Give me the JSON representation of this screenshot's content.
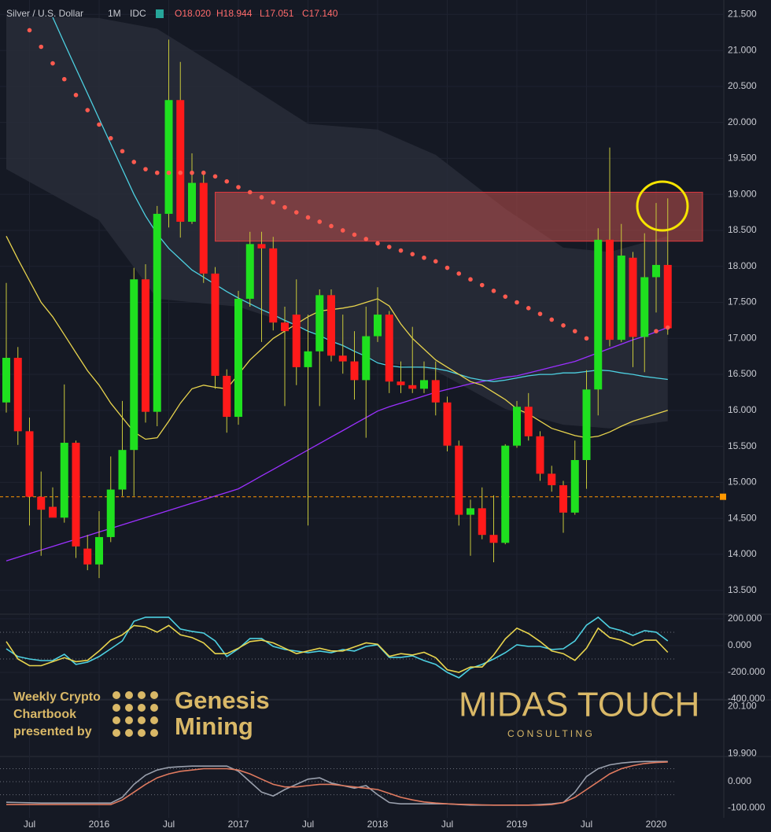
{
  "chart_data": [
    {
      "type": "candlestick",
      "title": "Silver / U.S. Dollar",
      "interval": "1M",
      "source": "IDC",
      "ohlc_labels": [
        "O18.020",
        "H18.944",
        "L17.051",
        "C17.140"
      ],
      "up_color": "#1fe01f",
      "down_color": "#ff1a1a",
      "grid": true,
      "ylim": [
        13.18,
        21.7
      ],
      "yticks": [
        {
          "value": 21.5,
          "label": "21.500"
        },
        {
          "value": 21,
          "label": "21.000"
        },
        {
          "value": 20.5,
          "label": "20.500"
        },
        {
          "value": 20,
          "label": "20.000"
        },
        {
          "value": 19.5,
          "label": "19.500"
        },
        {
          "value": 19,
          "label": "19.000"
        },
        {
          "value": 18.5,
          "label": "18.500"
        },
        {
          "value": 18,
          "label": "18.000"
        },
        {
          "value": 17.5,
          "label": "17.500"
        },
        {
          "value": 17,
          "label": "17.000"
        },
        {
          "value": 16.5,
          "label": "16.500"
        },
        {
          "value": 16,
          "label": "16.000"
        },
        {
          "value": 15.5,
          "label": "15.500"
        },
        {
          "value": 15,
          "label": "15.000"
        },
        {
          "value": 14.5,
          "label": "14.500"
        },
        {
          "value": 14,
          "label": "14.000"
        },
        {
          "value": 13.5,
          "label": "13.500"
        }
      ],
      "xticks": [
        {
          "value": 2,
          "label": "Jul"
        },
        {
          "value": 8,
          "label": "2016"
        },
        {
          "value": 14,
          "label": "Jul"
        },
        {
          "value": 20,
          "label": "2017"
        },
        {
          "value": 26,
          "label": "Jul"
        },
        {
          "value": 32,
          "label": "2018"
        },
        {
          "value": 38,
          "label": "Jul"
        },
        {
          "value": 44,
          "label": "2019"
        },
        {
          "value": 50,
          "label": "Jul"
        },
        {
          "value": 56,
          "label": "2020"
        }
      ],
      "open": [
        16.11,
        16.73,
        15.71,
        14.8,
        14.66,
        14.51,
        15.55,
        14.08,
        13.86,
        14.24,
        14.9,
        15.45,
        17.82,
        15.98,
        18.73,
        20.31,
        18.62,
        19.16,
        17.9,
        16.48,
        15.91,
        17.55,
        18.31,
        18.25,
        17.22,
        17.33,
        16.6,
        16.82,
        17.6,
        16.76,
        16.68,
        16.42,
        17.03,
        17.33,
        16.4,
        16.35,
        16.3,
        16.42,
        16.11,
        15.51,
        14.55,
        14.64,
        14.27,
        14.16,
        15.51,
        16.05,
        15.64,
        15.12,
        14.96,
        14.58,
        15.31,
        16.29,
        18.37,
        16.98,
        18.12,
        17.02,
        17.85,
        18.02
      ],
      "high": [
        17.77,
        16.88,
        15.9,
        15.15,
        14.93,
        16.36,
        15.58,
        14.27,
        14.6,
        15.36,
        16.13,
        17.98,
        18.03,
        18.84,
        21.15,
        20.84,
        19.57,
        19.29,
        17.99,
        16.57,
        17.66,
        18.48,
        18.48,
        18.41,
        17.44,
        17.82,
        17.33,
        17.68,
        17.68,
        17.33,
        17.1,
        17.44,
        17.71,
        17.38,
        16.68,
        17.16,
        16.68,
        16.68,
        16.19,
        15.58,
        14.76,
        14.93,
        14.82,
        15.53,
        16.13,
        16.24,
        15.71,
        15.23,
        15.02,
        15.58,
        16.56,
        18.53,
        19.65,
        18.59,
        18.2,
        18.46,
        18.88,
        18.944
      ],
      "low": [
        15.97,
        15.52,
        14.4,
        13.98,
        14.55,
        14.44,
        13.95,
        13.78,
        13.67,
        14.17,
        14.81,
        14.81,
        15.83,
        15.78,
        18.54,
        18.4,
        18.59,
        17.77,
        16.3,
        15.69,
        15.8,
        17.44,
        16.95,
        17.11,
        16.06,
        16.35,
        14.4,
        16.06,
        16.68,
        16.51,
        16.15,
        15.62,
        16.95,
        16.24,
        16.24,
        16.24,
        16.24,
        15.93,
        15.43,
        14.4,
        13.98,
        14.21,
        13.89,
        14.14,
        15.48,
        15.58,
        15.02,
        14.87,
        14.3,
        14.55,
        14.91,
        15.93,
        16.89,
        16.95,
        16.6,
        16.53,
        17.36,
        17.051
      ],
      "close": [
        16.73,
        15.71,
        14.8,
        14.62,
        14.51,
        15.55,
        14.11,
        13.86,
        14.24,
        14.9,
        15.45,
        17.82,
        15.98,
        18.73,
        20.31,
        18.62,
        19.16,
        17.9,
        16.48,
        15.91,
        17.55,
        18.31,
        18.25,
        17.22,
        17.1,
        16.6,
        16.82,
        17.6,
        16.76,
        16.68,
        16.42,
        17.03,
        17.33,
        16.4,
        16.35,
        16.3,
        16.42,
        16.11,
        15.51,
        14.55,
        14.64,
        14.27,
        14.16,
        15.51,
        16.05,
        15.64,
        15.12,
        14.96,
        14.58,
        15.31,
        16.29,
        18.37,
        16.98,
        18.15,
        17.02,
        17.85,
        18.02,
        17.14
      ],
      "band": {
        "color": "#2b2f3b",
        "x": [
          0,
          8,
          13,
          20,
          26,
          32,
          37,
          43,
          48,
          52,
          57
        ],
        "upper": [
          21.48,
          21.45,
          21.3,
          20.6,
          19.98,
          19.9,
          19.55,
          18.8,
          18.26,
          18.2,
          18.42
        ],
        "lower": [
          19.35,
          18.64,
          17.55,
          17.44,
          17.12,
          16.68,
          16.55,
          16.02,
          15.8,
          15.75,
          15.85
        ]
      },
      "zone": {
        "x": [
          18,
          60
        ],
        "from": 18.35,
        "to": 19.03,
        "color": "#c0504d"
      },
      "hline": {
        "value": 14.8,
        "color": "#ff9800"
      },
      "series": [
        {
          "color": "#9b30ff",
          "values": [
            13.91,
            13.96,
            14.01,
            14.06,
            14.11,
            14.16,
            14.21,
            14.26,
            14.31,
            14.36,
            14.41,
            14.46,
            14.51,
            14.56,
            14.61,
            14.66,
            14.71,
            14.76,
            14.81,
            14.86,
            14.91,
            15.0,
            15.09,
            15.18,
            15.27,
            15.36,
            15.45,
            15.54,
            15.63,
            15.72,
            15.81,
            15.9,
            15.99,
            16.05,
            16.1,
            16.15,
            16.2,
            16.25,
            16.29,
            16.33,
            16.37,
            16.4,
            16.43,
            16.46,
            16.48,
            16.52,
            16.56,
            16.6,
            16.64,
            16.68,
            16.74,
            16.8,
            16.86,
            16.92,
            16.98,
            17.03,
            17.09,
            17.15
          ]
        },
        {
          "color": "#4dd0e1",
          "values": [
            null,
            null,
            null,
            null,
            21.46,
            21.1,
            20.75,
            20.4,
            20.05,
            19.7,
            19.35,
            19.0,
            18.7,
            18.45,
            18.25,
            18.1,
            17.95,
            17.85,
            17.75,
            17.65,
            17.56,
            17.48,
            17.4,
            17.33,
            17.25,
            17.18,
            17.1,
            17.04,
            16.96,
            16.9,
            16.82,
            16.75,
            16.66,
            16.62,
            16.6,
            16.6,
            16.6,
            16.58,
            16.55,
            16.5,
            16.45,
            16.42,
            16.4,
            16.42,
            16.45,
            16.48,
            16.5,
            16.5,
            16.52,
            16.52,
            16.54,
            16.56,
            16.55,
            16.52,
            16.5,
            16.47,
            16.45,
            16.43
          ]
        },
        {
          "color": "#e8d44d",
          "values": [
            18.42,
            18.1,
            17.8,
            17.5,
            17.3,
            17.05,
            16.8,
            16.55,
            16.35,
            16.1,
            15.9,
            15.7,
            15.6,
            15.62,
            15.85,
            16.1,
            16.3,
            16.35,
            16.32,
            16.3,
            16.5,
            16.7,
            16.85,
            17.0,
            17.1,
            17.2,
            17.3,
            17.38,
            17.4,
            17.42,
            17.45,
            17.5,
            17.55,
            17.45,
            17.2,
            17.0,
            16.85,
            16.7,
            16.6,
            16.5,
            16.4,
            16.35,
            16.25,
            16.15,
            16.02,
            15.95,
            15.85,
            15.75,
            15.7,
            15.65,
            15.62,
            15.64,
            15.7,
            15.78,
            15.85,
            15.9,
            15.95,
            16.0
          ]
        }
      ],
      "dots": {
        "color": "#ff5a4f",
        "values": [
          null,
          null,
          21.28,
          21.05,
          20.82,
          20.6,
          20.38,
          20.17,
          19.97,
          19.78,
          19.6,
          19.45,
          19.35,
          19.3,
          19.3,
          19.3,
          19.3,
          19.3,
          19.25,
          19.18,
          19.1,
          19.03,
          18.96,
          18.89,
          18.82,
          18.75,
          18.68,
          18.62,
          18.56,
          18.5,
          18.44,
          18.38,
          18.32,
          18.27,
          18.22,
          18.17,
          18.12,
          18.07,
          17.98,
          17.9,
          17.82,
          17.74,
          17.66,
          17.58,
          17.5,
          17.42,
          17.34,
          17.26,
          17.18,
          17.1,
          17.0,
          null,
          null,
          null,
          null,
          null,
          17.1,
          17.15
        ]
      }
    },
    {
      "type": "line",
      "grid": true,
      "ylim": [
        -406,
        229
      ],
      "yticks": [
        {
          "value": 200,
          "label": "200.000"
        },
        {
          "value": 0,
          "label": "0.000"
        },
        {
          "value": -200,
          "label": "-200.000"
        },
        {
          "value": -400,
          "label": "-400.000"
        }
      ],
      "levels": [
        100,
        -100
      ],
      "series": [
        {
          "color": "#4dd0e1",
          "values": [
            -24,
            -82,
            -100,
            -112,
            -112,
            -65,
            -141,
            -124,
            -82,
            -24,
            35,
            182,
            212,
            212,
            212,
            124,
            106,
            94,
            35,
            -82,
            -24,
            53,
            53,
            -6,
            -29,
            -41,
            -53,
            -41,
            -53,
            -29,
            -41,
            -6,
            6,
            -88,
            -88,
            -76,
            -112,
            -141,
            -200,
            -241,
            -171,
            -141,
            -100,
            -53,
            6,
            -6,
            -6,
            -29,
            -24,
            35,
            153,
            212,
            135,
            112,
            76,
            112,
            100,
            35
          ]
        },
        {
          "color": "#e8d44d",
          "values": [
            30,
            -100,
            -150,
            -150,
            -120,
            -90,
            -120,
            -110,
            -40,
            40,
            80,
            150,
            140,
            100,
            150,
            80,
            60,
            20,
            -60,
            -60,
            -20,
            30,
            40,
            20,
            -20,
            -60,
            -40,
            -20,
            -40,
            -40,
            -10,
            20,
            10,
            -80,
            -60,
            -70,
            -50,
            -90,
            -180,
            -200,
            -160,
            -160,
            -70,
            50,
            130,
            90,
            30,
            -40,
            -60,
            -110,
            -20,
            130,
            60,
            40,
            0,
            40,
            40,
            -50
          ]
        }
      ]
    },
    {
      "type": "line",
      "grid": false,
      "ylim": [
        19.887,
        20.127
      ],
      "yticks": [
        {
          "value": 20.1,
          "label": "20.100"
        },
        {
          "value": 19.9,
          "label": "19.900"
        }
      ],
      "series": []
    },
    {
      "type": "line",
      "grid": false,
      "ylim": [
        -139,
        97
      ],
      "yticks": [
        {
          "value": 0,
          "label": "0.000"
        },
        {
          "value": -100,
          "label": "-100.000"
        }
      ],
      "levels": [
        50,
        0,
        -50
      ],
      "series": [
        {
          "color": "#9aa0ad",
          "values": [
            -79,
            -80,
            -81,
            -82,
            -82,
            -82,
            -82,
            -82,
            -82,
            -82,
            -60,
            -10,
            25,
            45,
            55,
            58,
            60,
            60,
            60,
            60,
            40,
            0,
            -40,
            -55,
            -30,
            -10,
            10,
            15,
            -5,
            -15,
            -25,
            -15,
            -50,
            -80,
            -85,
            -85,
            -85,
            -85,
            -85,
            -88,
            -90,
            -90,
            -90,
            -90,
            -90,
            -90,
            -88,
            -85,
            -80,
            -40,
            20,
            50,
            65,
            72,
            76,
            78,
            78,
            78
          ]
        },
        {
          "color": "#e07a5f",
          "values": [
            -88,
            -88,
            -88,
            -88,
            -88,
            -88,
            -88,
            -88,
            -88,
            -88,
            -70,
            -40,
            -10,
            15,
            30,
            40,
            45,
            50,
            50,
            50,
            45,
            30,
            10,
            -10,
            -20,
            -20,
            -15,
            -10,
            -10,
            -15,
            -20,
            -25,
            -30,
            -45,
            -60,
            -70,
            -78,
            -82,
            -85,
            -87,
            -88,
            -89,
            -90,
            -90,
            -90,
            -90,
            -90,
            -88,
            -80,
            -60,
            -30,
            0,
            30,
            50,
            62,
            70,
            74,
            76
          ]
        }
      ]
    }
  ],
  "overlay": {
    "left": [
      "Weekly Crypto",
      "Chartbook",
      "presented by"
    ],
    "brand": [
      "Genesis",
      "Mining"
    ],
    "midas": "MIDAS TOUCH",
    "consulting": "C O N S U L T I N G"
  }
}
